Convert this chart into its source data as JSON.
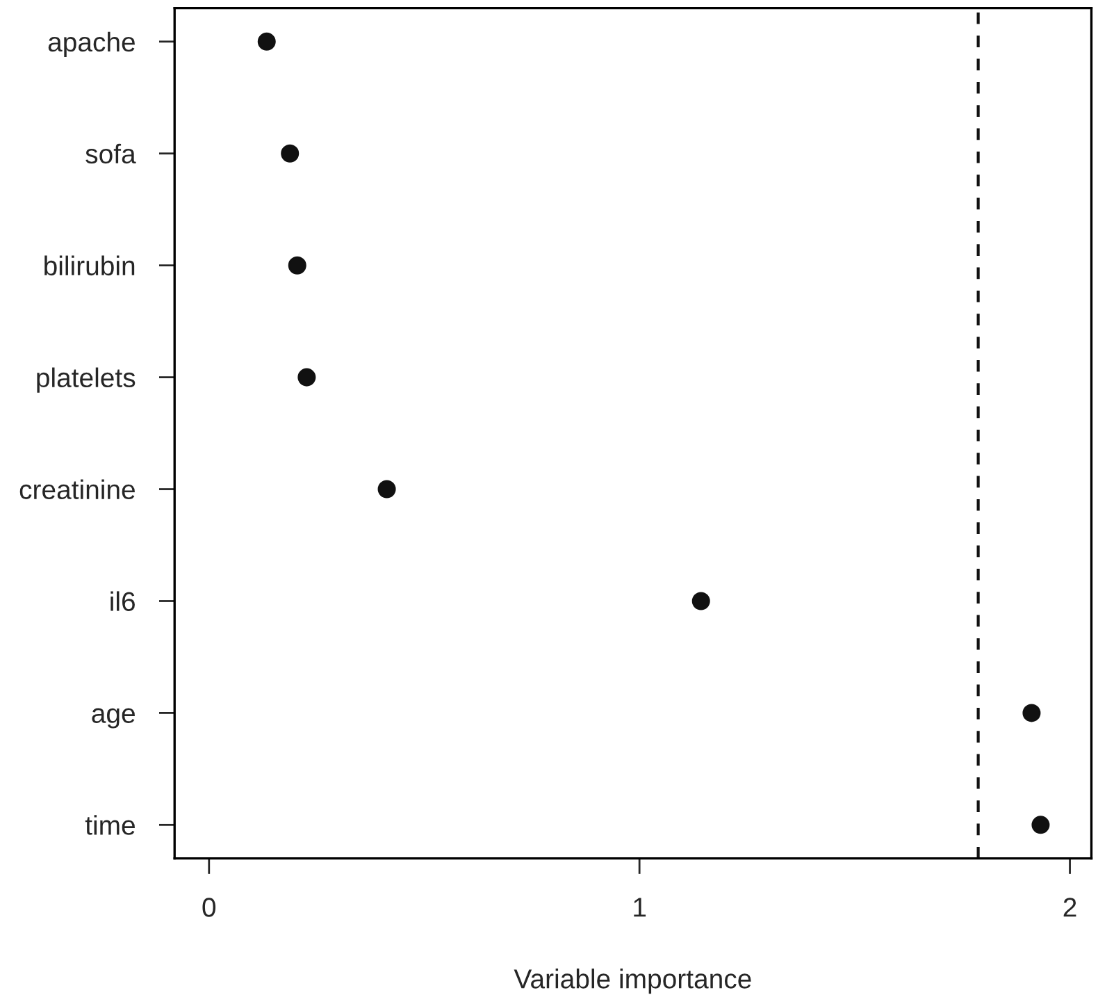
{
  "chart_data": {
    "type": "scatter",
    "orientation": "horizontal",
    "xlabel": "Variable importance",
    "categories": [
      "apache",
      "sofa",
      "bilirubin",
      "platelets",
      "creatinine",
      "il6",
      "age",
      "time"
    ],
    "series": [
      {
        "color": "#111111",
        "values": [
          0.134,
          0.188,
          0.205,
          0.227,
          0.413,
          1.143,
          1.911,
          1.932
        ]
      }
    ],
    "xlim": [
      -0.08,
      2.05
    ],
    "xticks": [
      0,
      1,
      2
    ],
    "marker": "circle",
    "grid": false,
    "ref_lines": [
      {
        "axis": "x",
        "value": 1.787,
        "line_style": "dashed",
        "color": "#111111"
      }
    ]
  }
}
